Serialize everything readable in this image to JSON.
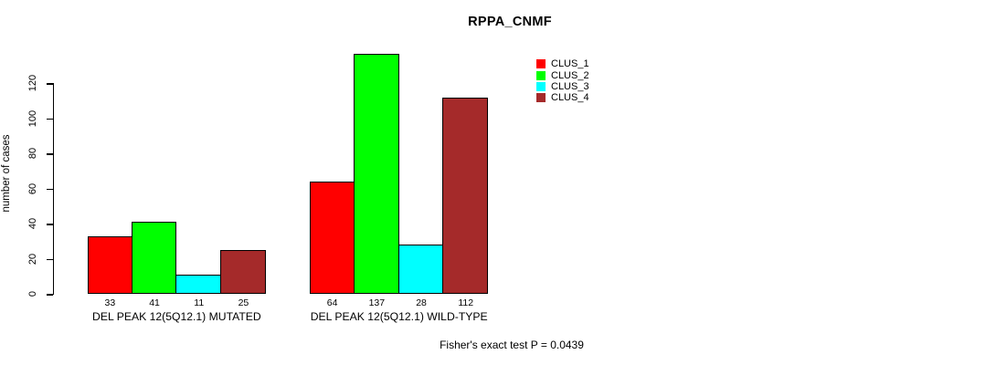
{
  "title": "RPPA_CNMF",
  "chart_data": {
    "type": "bar",
    "title": "RPPA_CNMF",
    "xlabel": "",
    "ylabel": "number of cases",
    "ylim": [
      0,
      120
    ],
    "yticks": [
      0,
      20,
      40,
      60,
      80,
      100,
      120
    ],
    "grid": false,
    "legend_position": "top-right",
    "categories": [
      "DEL PEAK 12(5Q12.1) MUTATED",
      "DEL PEAK 12(5Q12.1) WILD-TYPE"
    ],
    "series": [
      {
        "name": "CLUS_1",
        "color": "#FF0000",
        "values": [
          33,
          64
        ]
      },
      {
        "name": "CLUS_2",
        "color": "#00FF00",
        "values": [
          41,
          137
        ]
      },
      {
        "name": "CLUS_3",
        "color": "#00FFFF",
        "values": [
          11,
          28
        ]
      },
      {
        "name": "CLUS_4",
        "color": "#A52A2A",
        "values": [
          25,
          112
        ]
      }
    ],
    "bar_value_labels": {
      "DEL PEAK 12(5Q12.1) MUTATED": [
        33,
        41,
        11,
        25
      ],
      "DEL PEAK 12(5Q12.1) WILD-TYPE": [
        64,
        137,
        28,
        112
      ]
    },
    "annotation": "Fisher's exact test P = 0.0439"
  },
  "colors": {
    "bar_border": "#000000",
    "axis": "#000000",
    "CLUS_1": "#FF0000",
    "CLUS_2": "#00FF00",
    "CLUS_3": "#00FFFF",
    "CLUS_4": "#A52A2A"
  }
}
